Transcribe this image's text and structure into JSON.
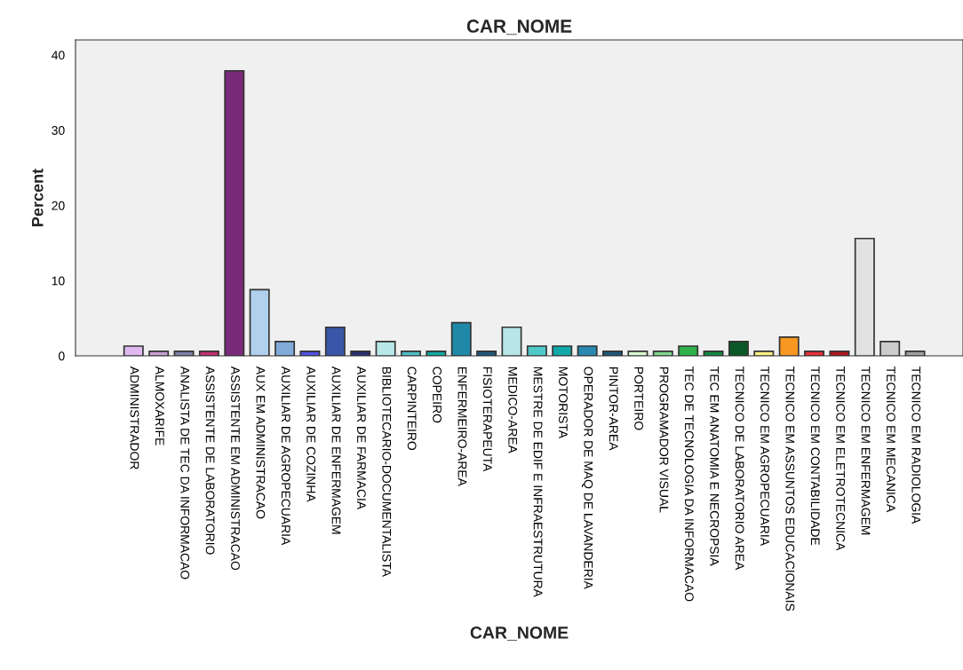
{
  "chart_data": {
    "type": "bar",
    "title": "CAR_NOME",
    "xlabel": "CAR_NOME",
    "ylabel": "Percent",
    "categories": [
      "ADMINISTRADOR",
      "ALMOXARIFE",
      "ANALISTA DE TEC DA INFORMACAO",
      "ASSISTENTE DE LABORATORIO",
      "ASSISTENTE EM ADMINISTRACAO",
      "AUX EM ADMINISTRACAO",
      "AUXILIAR DE AGROPECUARIA",
      "AUXILIAR DE COZINHA",
      "AUXILIAR DE ENFERMAGEM",
      "AUXILIAR DE FARMACIA",
      "BIBLIOTECARIO-DOCUMENTALISTA",
      "CARPINTEIRO",
      "COPEIRO",
      "ENFERMEIRO-AREA",
      "FISIOTERAPEUTA",
      "MEDICO-AREA",
      "MESTRE DE EDIF E INFRAESTRUTURA",
      "MOTORISTA",
      "OPERADOR DE MAQ DE LAVANDERIA",
      "PINTOR-AREA",
      "PORTEIRO",
      "PROGRAMADOR VISUAL",
      "TEC DE TECNOLOGIA DA INFORMACAO",
      "TEC EM ANATOMIA E NECROPSIA",
      "TECNICO DE LABORATORIO AREA",
      "TECNICO EM AGROPECUARIA",
      "TECNICO EM ASSUNTOS EDUCACIONAIS",
      "TECNICO EM CONTABILIDADE",
      "TECNICO EM ELETROTECNICA",
      "TECNICO EM ENFERMAGEM",
      "TECNICO EM MECANICA",
      "TECNICO EM RADIOLOGIA"
    ],
    "values": [
      1.3,
      0.6,
      0.6,
      0.6,
      37.9,
      8.8,
      1.9,
      0.6,
      3.8,
      0.6,
      1.9,
      0.6,
      0.6,
      4.4,
      0.6,
      3.8,
      1.3,
      1.3,
      1.3,
      0.6,
      0.6,
      0.6,
      1.3,
      0.6,
      1.9,
      0.6,
      2.5,
      0.6,
      0.6,
      15.6,
      1.9,
      0.6
    ],
    "colors": [
      "#e0b8f0",
      "#c8a0d0",
      "#8080a8",
      "#c03070",
      "#7b2a7b",
      "#b0d0ee",
      "#80aad8",
      "#5050e0",
      "#3a56a8",
      "#283070",
      "#b8e8e8",
      "#50c0c8",
      "#10a8a0",
      "#2088a8",
      "#205878",
      "#b8e6e6",
      "#50c8c8",
      "#10a8a8",
      "#2888b0",
      "#205878",
      "#d8f8d0",
      "#80d890",
      "#30b048",
      "#108840",
      "#0a5828",
      "#f8f080",
      "#f89820",
      "#e83038",
      "#b01820",
      "#e2e2e2",
      "#cccccc",
      "#a0a0a0"
    ],
    "ylim": [
      0,
      42
    ],
    "yticks": [
      0,
      10,
      20,
      30,
      40
    ],
    "grid": false
  }
}
